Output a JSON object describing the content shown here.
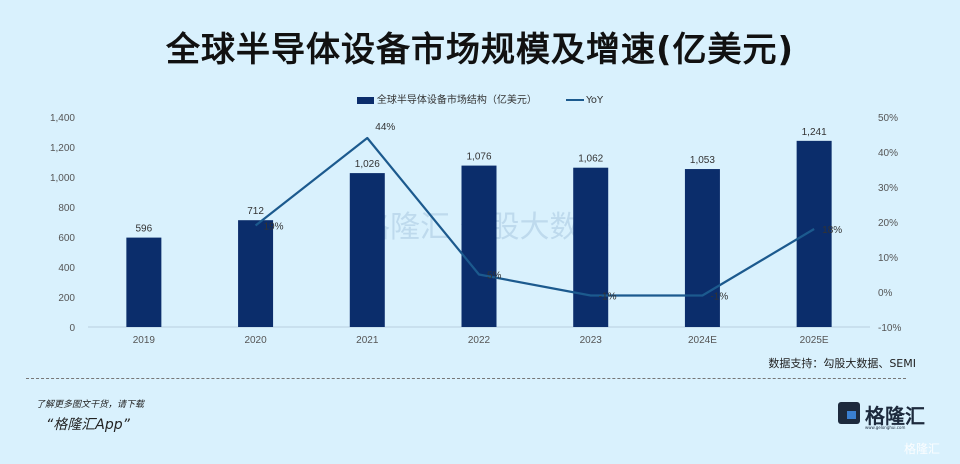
{
  "title": "全球半导体设备市场规模及增速(亿美元)",
  "legend": {
    "bar_label": "全球半导体设备市场结构（亿美元）",
    "line_label": "YoY"
  },
  "source": "数据支持：勾股大数据、SEMI",
  "promo": {
    "line1": "了解更多图文干货，请下载",
    "line2": "“格隆汇App”"
  },
  "logo": {
    "name": "格隆汇",
    "url": "www.gelonghui.com"
  },
  "watermark": "格隆汇",
  "watermark_center": "格隆汇  勾股大数据",
  "colors": {
    "bar": "#0b2d6b",
    "line": "#1c5a8e",
    "background": "#d9f1fd"
  },
  "chart_data": {
    "type": "bar+line",
    "title": "全球半导体设备市场规模及增速(亿美元)",
    "categories": [
      "2019",
      "2020",
      "2021",
      "2022",
      "2023",
      "2024E",
      "2025E"
    ],
    "series": [
      {
        "name": "全球半导体设备市场结构（亿美元）",
        "type": "bar",
        "axis": "left",
        "values": [
          596,
          712,
          1026,
          1076,
          1062,
          1053,
          1241
        ],
        "labels": [
          "596",
          "712",
          "1,026",
          "1,076",
          "1,062",
          "1,053",
          "1,241"
        ]
      },
      {
        "name": "YoY",
        "type": "line",
        "axis": "right",
        "values": [
          null,
          19,
          44,
          5,
          -1,
          -1,
          18
        ],
        "labels": [
          "",
          "19%",
          "44%",
          "5%",
          "-1%",
          "-1%",
          "18%"
        ]
      }
    ],
    "left_axis": {
      "ylim": [
        0,
        1400
      ],
      "ticks": [
        "0",
        "200",
        "400",
        "600",
        "800",
        "1,000",
        "1,200",
        "1,400"
      ]
    },
    "right_axis": {
      "ylim": [
        -10,
        50
      ],
      "ticks": [
        "-10%",
        "0%",
        "10%",
        "20%",
        "30%",
        "40%",
        "50%"
      ]
    },
    "grid": false,
    "legend_position": "top"
  }
}
